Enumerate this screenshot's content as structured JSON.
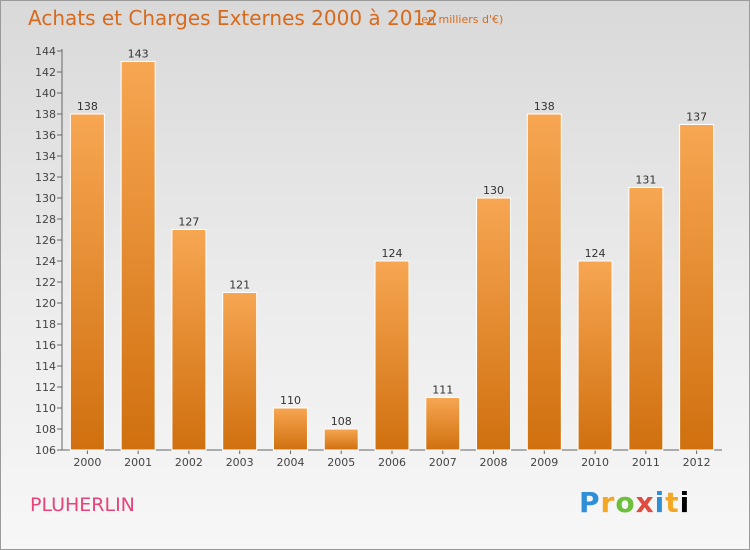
{
  "header": {
    "title": "Achats et Charges Externes 2000 à 2012",
    "subtitle": "(en milliers d'€)"
  },
  "footer": {
    "commune": "PLUHERLIN",
    "logo_letters": [
      "P",
      "r",
      "o",
      "x",
      "i",
      "t",
      "i"
    ]
  },
  "colors": {
    "bar_top": "#f7a652",
    "bar_bottom": "#d0700f",
    "title": "#d86a1c",
    "commune": "#e7427a"
  },
  "chart_data": {
    "type": "bar",
    "title": "Achats et Charges Externes 2000 à 2012",
    "subtitle": "(en milliers d'€)",
    "categories": [
      "2000",
      "2001",
      "2002",
      "2003",
      "2004",
      "2005",
      "2006",
      "2007",
      "2008",
      "2009",
      "2010",
      "2011",
      "2012"
    ],
    "values": [
      138,
      143,
      127,
      121,
      110,
      108,
      124,
      111,
      130,
      138,
      124,
      131,
      137
    ],
    "ylim": [
      106,
      144
    ],
    "yticks": [
      106,
      108,
      110,
      112,
      114,
      116,
      118,
      120,
      122,
      124,
      126,
      128,
      130,
      132,
      134,
      136,
      138,
      140,
      142,
      144
    ],
    "xlabel": "",
    "ylabel": "",
    "grid": false,
    "data_labels": true
  }
}
